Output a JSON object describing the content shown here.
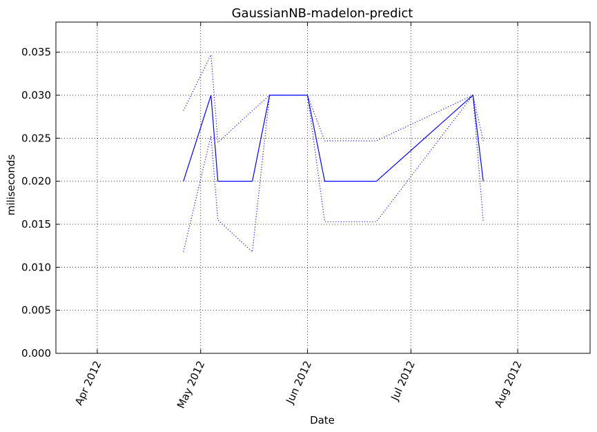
{
  "chart_data": {
    "type": "line",
    "title": "GaussianNB-madelon-predict",
    "xlabel": "Date",
    "ylabel": "miliseconds",
    "x_ticks": [
      "Apr 2012",
      "May 2012",
      "Jun 2012",
      "Jul 2012",
      "Aug 2012"
    ],
    "x_tick_dates": [
      "2012-04-01",
      "2012-05-01",
      "2012-06-01",
      "2012-07-01",
      "2012-08-01"
    ],
    "xlim": [
      "2012-03-20",
      "2012-08-22"
    ],
    "ylim": [
      0,
      0.0385
    ],
    "y_ticks": [
      0.0,
      0.005,
      0.01,
      0.015,
      0.02,
      0.025,
      0.03,
      0.035
    ],
    "y_tick_labels": [
      "0.000",
      "0.005",
      "0.010",
      "0.015",
      "0.020",
      "0.025",
      "0.030",
      "0.035"
    ],
    "grid": true,
    "color": "#0000ff",
    "x": [
      "2012-04-26",
      "2012-05-04",
      "2012-05-06",
      "2012-05-16",
      "2012-05-21",
      "2012-06-01",
      "2012-06-06",
      "2012-06-21",
      "2012-07-19",
      "2012-07-22"
    ],
    "series": [
      {
        "style": "solid",
        "values": [
          0.02,
          0.03,
          0.02,
          0.02,
          0.03,
          0.03,
          0.02,
          0.02,
          0.03,
          0.02
        ]
      },
      {
        "style": "dotted",
        "values": [
          0.0282,
          0.0347,
          0.0245,
          0.0282,
          0.03,
          0.03,
          0.0247,
          0.0247,
          0.03,
          0.0247
        ]
      },
      {
        "style": "dotted",
        "values": [
          0.0118,
          0.0253,
          0.0155,
          0.0118,
          0.03,
          0.03,
          0.0153,
          0.0153,
          0.03,
          0.0153
        ]
      }
    ]
  }
}
